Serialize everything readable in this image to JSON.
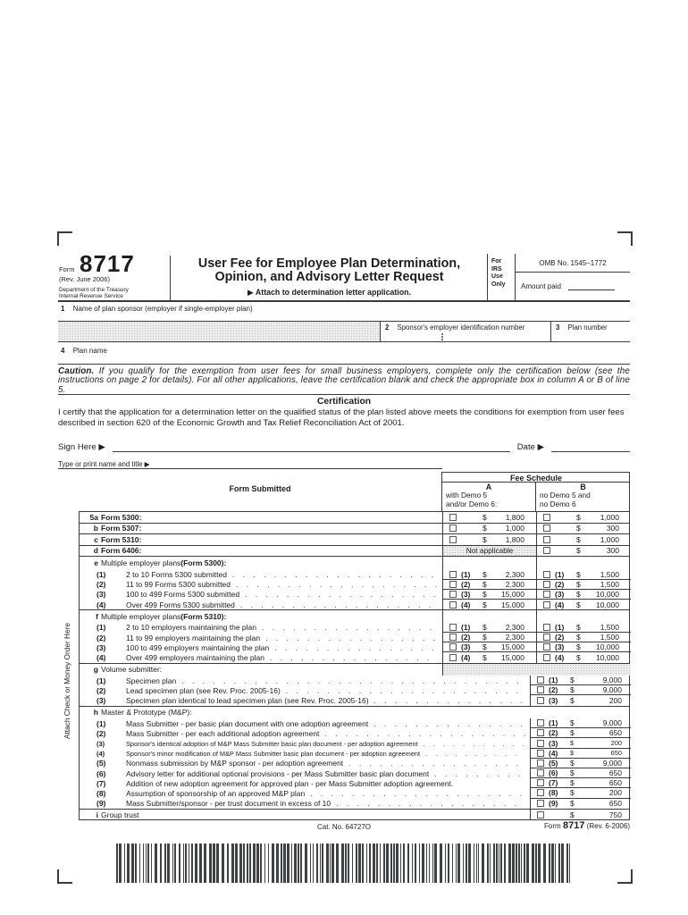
{
  "header": {
    "form_word": "Form",
    "form_number": "8717",
    "revision": "(Rev. June 2006)",
    "dept": "Department of the Treasury",
    "agency": "Internal Revenue Service",
    "title_line1": "User Fee for Employee Plan Determination,",
    "title_line2": "Opinion, and Advisory Letter Request",
    "attach_note": "▶ Attach to determination letter application.",
    "irs_use": [
      "For",
      "IRS",
      "Use",
      "Only"
    ],
    "omb": "OMB No. 1545–1772",
    "amount_paid_label": "Amount paid"
  },
  "fields": {
    "line1_num": "1",
    "line1_label": "Name of plan sponsor (employer if single-employer plan)",
    "line2_num": "2",
    "line2_label": "Sponsor's employer identification number",
    "line3_num": "3",
    "line3_label": "Plan number",
    "line4_num": "4",
    "line4_label": "Plan name"
  },
  "caution": {
    "lead": "Caution.",
    "text": "If you qualify for the exemption from user fees for small business employers, complete only the certification below (see the instructions on page 2 for details). For all other applications, leave the certification blank and check the appropriate box in column A or B of line 5."
  },
  "certification": {
    "heading": "Certification",
    "text": "I certify that the application for a determination letter on the qualified status of the plan listed above meets the conditions for exemption from user fees described in section 620 of the Economic Growth and Tax Relief Reconciliation Act of 2001.",
    "sign_label": "Sign Here ▶",
    "date_label": "Date ▶",
    "type_label": "Type or print name and title ▶"
  },
  "side_note": "Attach Check or Money Order Here",
  "fee_table": {
    "form_submitted": "Form Submitted",
    "fee_schedule": "Fee Schedule",
    "not_applicable": "Not applicable",
    "col_a": {
      "letter": "A",
      "desc1": "with Demo 5",
      "desc2": "and/or Demo 6:"
    },
    "col_b": {
      "letter": "B",
      "desc1": "no Demo 5 and",
      "desc2": "no Demo 6"
    },
    "rows": [
      {
        "type": "item",
        "letter": "5a",
        "label": "Form 5300:",
        "bold_label": true,
        "feeA": {
          "amt": "1,800"
        },
        "feeB": {
          "amt": "1,000"
        }
      },
      {
        "type": "item",
        "letter": "b",
        "label": "Form 5307:",
        "bold_label": true,
        "feeA": {
          "amt": "1,000"
        },
        "feeB": {
          "amt": "300"
        }
      },
      {
        "type": "item",
        "letter": "c",
        "label": "Form 5310:",
        "bold_label": true,
        "feeA": {
          "amt": "1,800"
        },
        "feeB": {
          "amt": "1,000"
        }
      },
      {
        "type": "item",
        "letter": "d",
        "label": "Form 6406:",
        "bold_label": true,
        "feeA": "na",
        "feeB": {
          "amt": "300"
        }
      },
      {
        "type": "section",
        "letter": "e",
        "label_pre": "Multiple employer plans ",
        "label_bold": "(Form 5300):",
        "cells": "ab"
      },
      {
        "type": "sub",
        "num": "(1)",
        "label": "2 to 10 Forms 5300 submitted",
        "dots": true,
        "feeA": {
          "num": "(1)",
          "amt": "2,300"
        },
        "feeB": {
          "num": "(1)",
          "amt": "1,500"
        }
      },
      {
        "type": "sub",
        "num": "(2)",
        "label": "11 to 99 Forms 5300 submitted",
        "dots": true,
        "feeA": {
          "num": "(2)",
          "amt": "2,300"
        },
        "feeB": {
          "num": "(2)",
          "amt": "1,500"
        }
      },
      {
        "type": "sub",
        "num": "(3)",
        "label": "100 to 499 Forms 5300 submitted",
        "dots": true,
        "feeA": {
          "num": "(3)",
          "amt": "15,000"
        },
        "feeB": {
          "num": "(3)",
          "amt": "10,000"
        }
      },
      {
        "type": "sub",
        "num": "(4)",
        "label": "Over 499 Forms 5300 submitted",
        "dots": true,
        "last": true,
        "feeA": {
          "num": "(4)",
          "amt": "15,000"
        },
        "feeB": {
          "num": "(4)",
          "amt": "10,000"
        }
      },
      {
        "type": "section",
        "letter": "f",
        "label_pre": "Multiple employer plans ",
        "label_bold": "(Form 5310):",
        "cells": "ab",
        "top_line": true
      },
      {
        "type": "sub",
        "num": "(1)",
        "label": "2 to 10 employers maintaining the plan",
        "dots": true,
        "feeA": {
          "num": "(1)",
          "amt": "2,300"
        },
        "feeB": {
          "num": "(1)",
          "amt": "1,500"
        }
      },
      {
        "type": "sub",
        "num": "(2)",
        "label": "11 to 99 employers maintaining the plan",
        "dots": true,
        "feeA": {
          "num": "(2)",
          "amt": "2,300"
        },
        "feeB": {
          "num": "(2)",
          "amt": "1,500"
        }
      },
      {
        "type": "sub",
        "num": "(3)",
        "label": "100 to 499 employers maintaining the plan",
        "dots": true,
        "feeA": {
          "num": "(3)",
          "amt": "15,000"
        },
        "feeB": {
          "num": "(3)",
          "amt": "10,000"
        }
      },
      {
        "type": "sub",
        "num": "(4)",
        "label": "Over 499 employers maintaining the plan",
        "dots": true,
        "last": true,
        "feeA": {
          "num": "(4)",
          "amt": "15,000"
        },
        "feeB": {
          "num": "(4)",
          "amt": "10,000"
        }
      },
      {
        "type": "section",
        "letter": "g",
        "label_pre": "Volume submitter:",
        "cells": "gray",
        "top_line": true
      },
      {
        "type": "sub",
        "num": "(1)",
        "label": "Specimen plan",
        "dots": true,
        "feeM": {
          "num": "(1)",
          "amt": "9,000"
        }
      },
      {
        "type": "sub",
        "num": "(2)",
        "label": "Lead specimen plan (see Rev. Proc. 2005-16)",
        "dots": true,
        "feeM": {
          "num": "(2)",
          "amt": "9,000"
        }
      },
      {
        "type": "sub",
        "num": "(3)",
        "label": "Specimen plan identical to lead specimen plan (see Rev. Proc. 2005-16)",
        "dots": true,
        "last": true,
        "feeM": {
          "num": "(3)",
          "amt": "200"
        }
      },
      {
        "type": "section",
        "letter": "h",
        "label_pre": "Master & Prototype (M&P):",
        "top_line": true
      },
      {
        "type": "sub",
        "num": "(1)",
        "label": "Mass Submitter - per basic plan document with one adoption agreement",
        "dots": true,
        "feeM": {
          "num": "(1)",
          "amt": "9,000"
        }
      },
      {
        "type": "sub",
        "num": "(2)",
        "label": "Mass Submitter - per each additional adoption agreement",
        "dots": true,
        "feeM": {
          "num": "(2)",
          "amt": "650"
        }
      },
      {
        "type": "sub",
        "num": "(3)",
        "small": true,
        "label": "Sponsor's identical adoption of M&P Mass Submitter basic plan document - per adoption agreement",
        "dots": true,
        "feeM": {
          "num": "(3)",
          "amt": "200"
        }
      },
      {
        "type": "sub",
        "num": "(4)",
        "small": true,
        "label": "Sponsor's minor modification of M&P Mass Submitter basic plan document - per adoption agreement",
        "dots": true,
        "feeM": {
          "num": "(4)",
          "amt": "650"
        }
      },
      {
        "type": "sub",
        "num": "(5)",
        "label": "Nonmass submission by M&P sponsor - per adoption agreement",
        "dots": true,
        "feeM": {
          "num": "(5)",
          "amt": "9,000"
        }
      },
      {
        "type": "sub",
        "num": "(6)",
        "label": "Advisory letter for additional optional provisions - per Mass Submitter basic plan document",
        "dots": true,
        "feeM": {
          "num": "(6)",
          "amt": "650"
        }
      },
      {
        "type": "sub",
        "num": "(7)",
        "label": "Addition of new adoption agreement for approved plan - per Mass Submitter adoption agreement.",
        "feeM": {
          "num": "(7)",
          "amt": "650"
        }
      },
      {
        "type": "sub",
        "num": "(8)",
        "label": "Assumption of sponsorship of an approved M&P plan",
        "dots": true,
        "feeM": {
          "num": "(8)",
          "amt": "200"
        }
      },
      {
        "type": "sub",
        "num": "(9)",
        "label": "Mass Submitter/sponsor - per trust document in excess of 10",
        "dots": true,
        "last": true,
        "feeM": {
          "num": "(9)",
          "amt": "650"
        }
      },
      {
        "type": "item",
        "letter": "i",
        "label": "Group trust",
        "top_line": true,
        "no_bottom": true,
        "feeM": {
          "amt": "750"
        }
      }
    ]
  },
  "footer": {
    "cat": "Cat. No. 64727O",
    "form_word": "Form",
    "form_number": "8717",
    "rev": "(Rev. 6-2006)"
  }
}
